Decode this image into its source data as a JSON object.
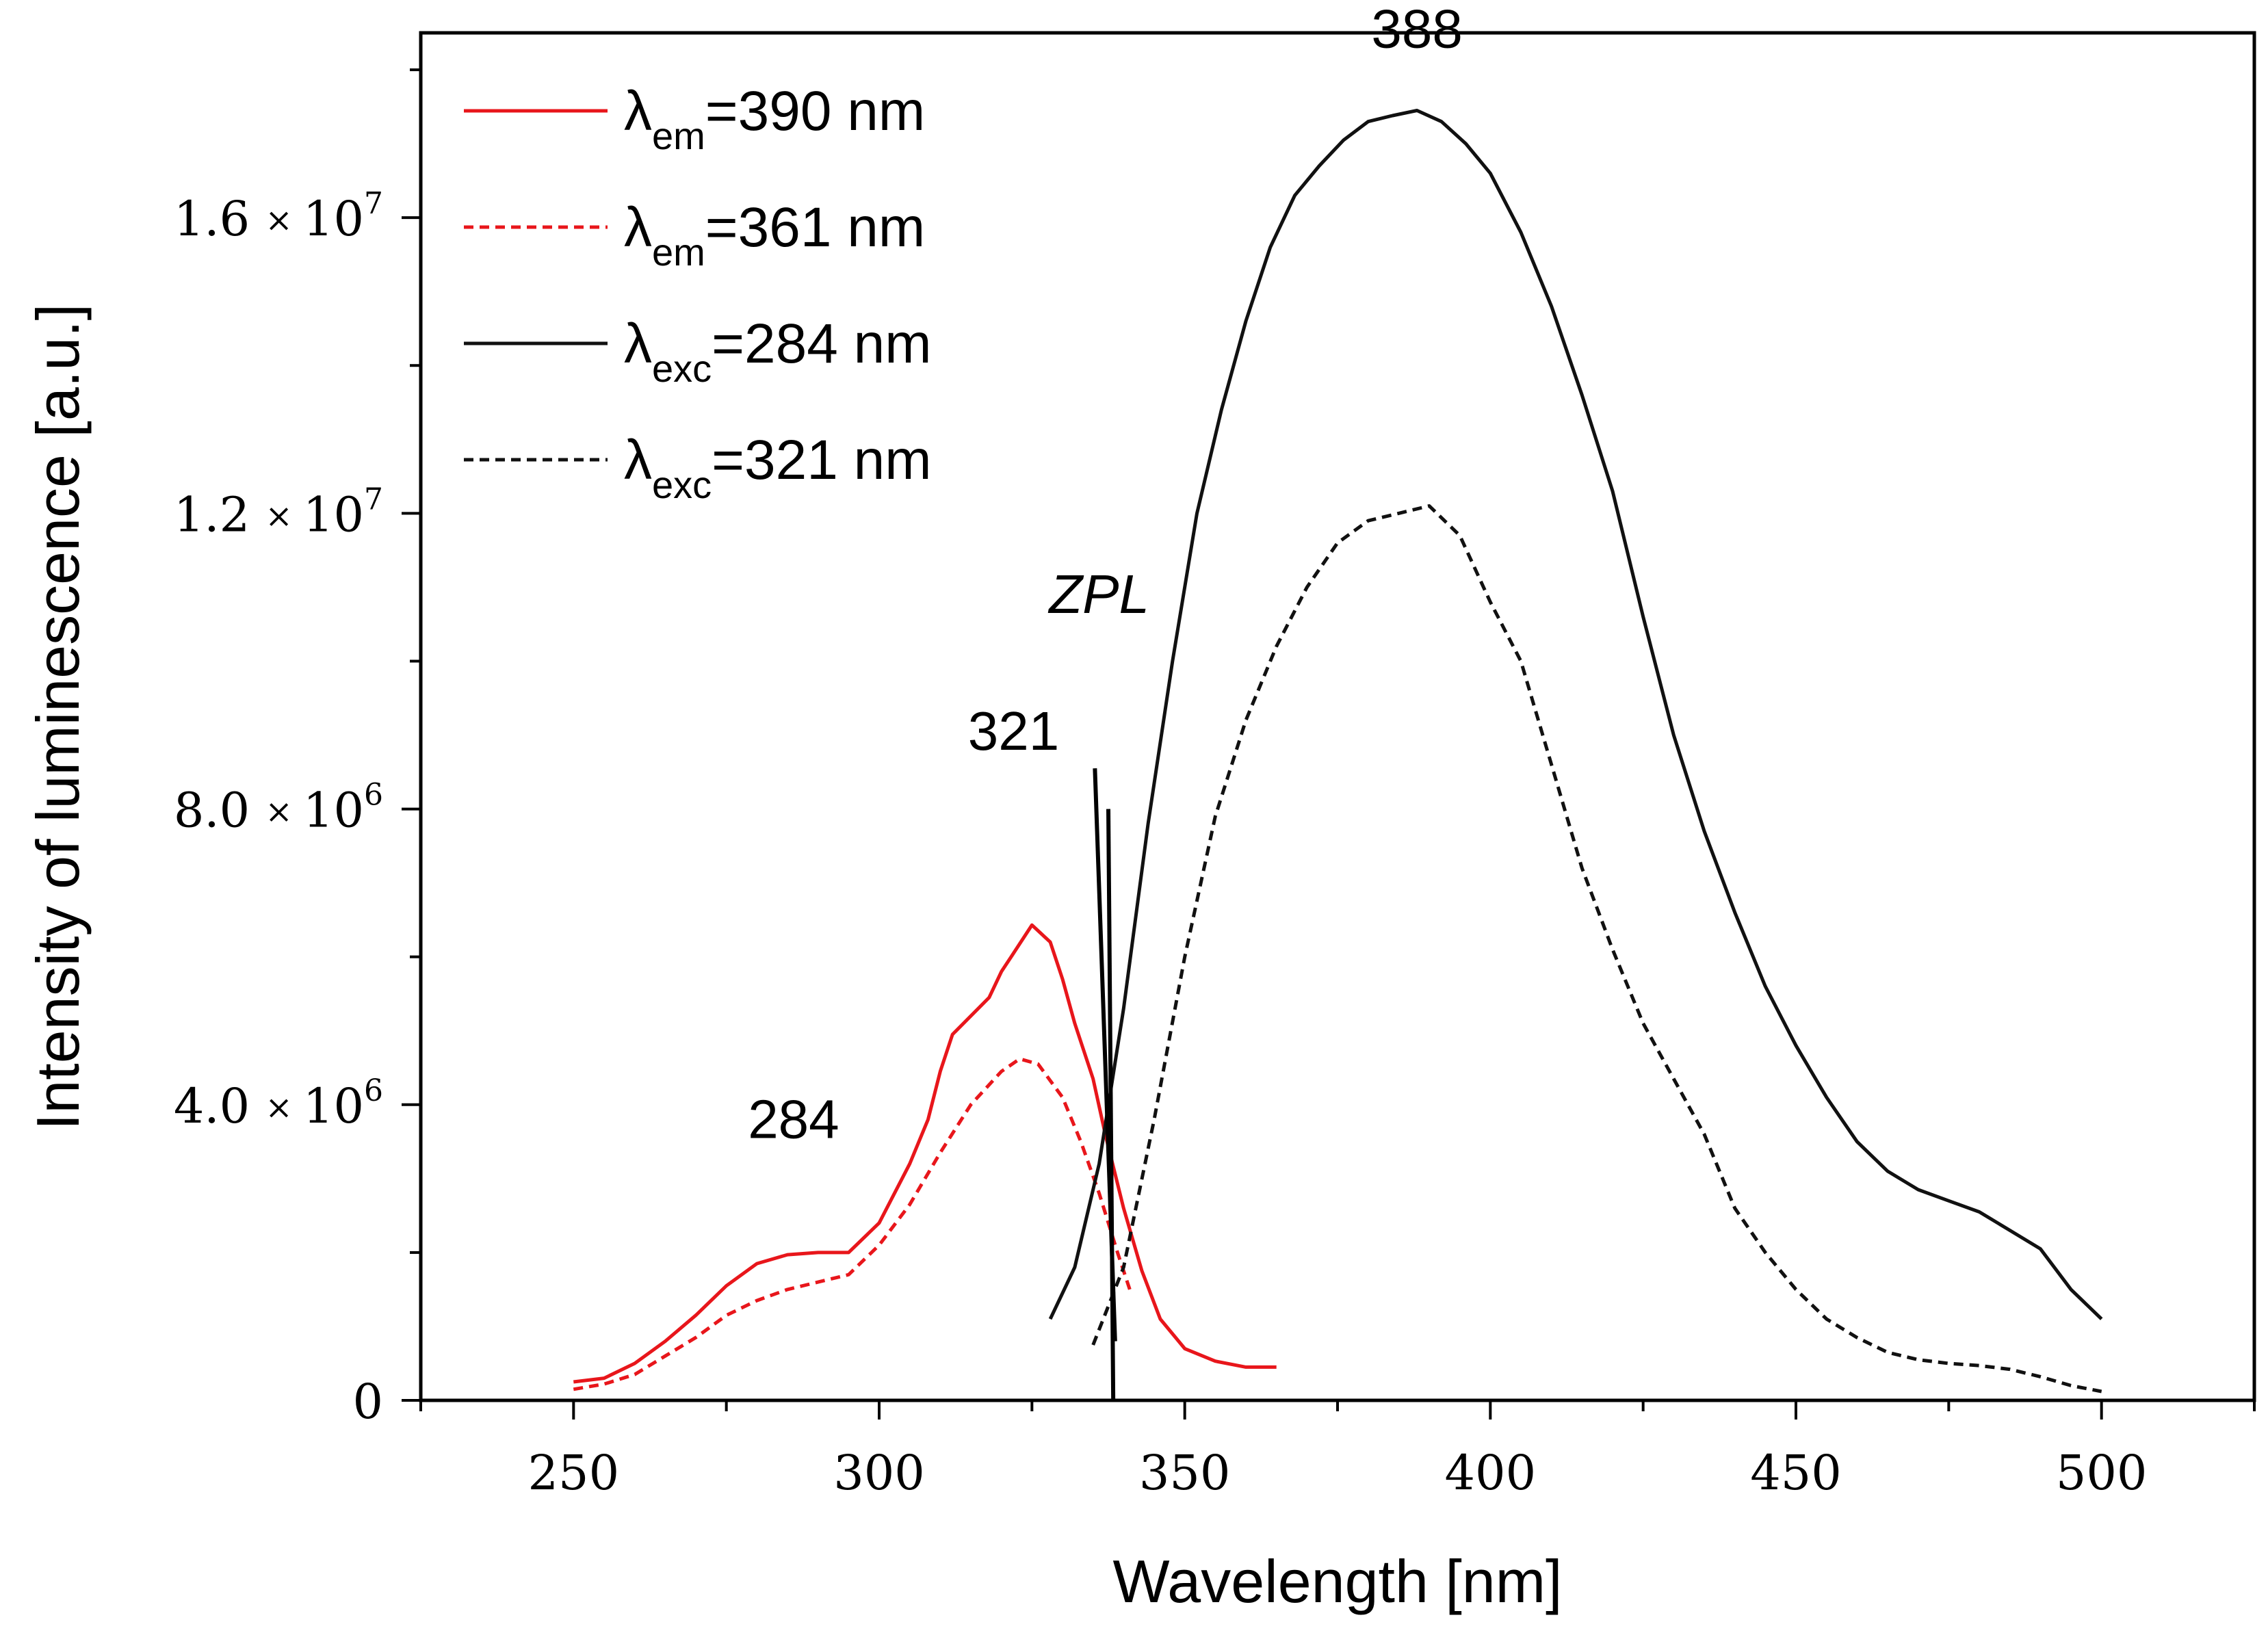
{
  "chart_data": {
    "type": "line",
    "xlabel": "Wavelength [nm]",
    "ylabel": "Intensity of luminescence [a.u.]",
    "xlim": [
      225,
      525
    ],
    "ylim": [
      0,
      18500000
    ],
    "x_ticks": [
      {
        "value": 250,
        "label": "250"
      },
      {
        "value": 300,
        "label": "300"
      },
      {
        "value": 350,
        "label": "350"
      },
      {
        "value": 400,
        "label": "400"
      },
      {
        "value": 450,
        "label": "450"
      },
      {
        "value": 500,
        "label": "500"
      }
    ],
    "x_minor_ticks": [
      225,
      275,
      325,
      375,
      425,
      475,
      525
    ],
    "y_ticks": [
      {
        "value": 0,
        "mantissa": "0",
        "times": "",
        "base": "",
        "exp": ""
      },
      {
        "value": 4000000,
        "mantissa": "4.0",
        "times": "×",
        "base": "10",
        "exp": "6"
      },
      {
        "value": 8000000,
        "mantissa": "8.0",
        "times": "×",
        "base": "10",
        "exp": "6"
      },
      {
        "value": 12000000,
        "mantissa": "1.2",
        "times": "×",
        "base": "10",
        "exp": "7"
      },
      {
        "value": 16000000,
        "mantissa": "1.6",
        "times": "×",
        "base": "10",
        "exp": "7"
      }
    ],
    "y_minor_ticks": [
      2000000,
      6000000,
      10000000,
      14000000,
      18000000
    ],
    "legend_position": "top-left",
    "series": [
      {
        "name": "λem=390 nm",
        "legend": {
          "symbol": "λ",
          "sub": "em",
          "rest": "=390 nm"
        },
        "color": "#e8161b",
        "dash": "solid",
        "x": [
          250,
          255,
          260,
          265,
          270,
          275,
          280,
          285,
          290,
          295,
          300,
          305,
          308,
          310,
          312,
          315,
          318,
          320,
          322,
          325,
          328,
          330,
          332,
          335,
          337,
          340,
          343,
          346,
          350,
          355,
          360,
          365
        ],
        "y": [
          250000,
          300000,
          500000,
          800000,
          1150000,
          1550000,
          1850000,
          1970000,
          2000000,
          2000000,
          2400000,
          3200000,
          3800000,
          4450000,
          4950000,
          5200000,
          5450000,
          5800000,
          6050000,
          6430000,
          6200000,
          5700000,
          5100000,
          4350000,
          3600000,
          2600000,
          1750000,
          1100000,
          700000,
          530000,
          450000,
          450000
        ]
      },
      {
        "name": "λem=361 nm",
        "legend": {
          "symbol": "λ",
          "sub": "em",
          "rest": "=361 nm"
        },
        "color": "#e8161b",
        "dash": "dashed",
        "x": [
          250,
          255,
          260,
          265,
          270,
          275,
          280,
          285,
          290,
          295,
          300,
          305,
          310,
          315,
          320,
          323,
          326,
          330,
          333,
          336,
          339,
          341
        ],
        "y": [
          150000,
          220000,
          350000,
          600000,
          850000,
          1150000,
          1350000,
          1500000,
          1600000,
          1700000,
          2100000,
          2650000,
          3350000,
          4000000,
          4450000,
          4620000,
          4550000,
          4100000,
          3500000,
          2800000,
          2000000,
          1500000
        ]
      },
      {
        "name": "λexc=284 nm",
        "legend": {
          "symbol": "λ",
          "sub": "exc",
          "rest": "=284 nm"
        },
        "color": "#111111",
        "dash": "solid",
        "x": [
          328,
          332,
          336,
          340,
          344,
          348,
          352,
          356,
          360,
          364,
          368,
          372,
          376,
          380,
          384,
          388,
          392,
          396,
          400,
          405,
          410,
          415,
          420,
          425,
          430,
          435,
          440,
          445,
          450,
          455,
          460,
          465,
          470,
          475,
          480,
          485,
          490,
          495,
          500
        ],
        "y": [
          1100000,
          1800000,
          3200000,
          5300000,
          7800000,
          10000000,
          12000000,
          13400000,
          14600000,
          15600000,
          16300000,
          16700000,
          17050000,
          17300000,
          17380000,
          17450000,
          17300000,
          17000000,
          16600000,
          15800000,
          14800000,
          13600000,
          12300000,
          10600000,
          9000000,
          7700000,
          6600000,
          5600000,
          4800000,
          4100000,
          3500000,
          3100000,
          2850000,
          2700000,
          2550000,
          2300000,
          2050000,
          1500000,
          1100000
        ]
      },
      {
        "name": "λexc=321 nm",
        "legend": {
          "symbol": "λ",
          "sub": "exc",
          "rest": "=321 nm"
        },
        "color": "#111111",
        "dash": "dashed",
        "x": [
          335,
          340,
          345,
          350,
          355,
          360,
          365,
          370,
          375,
          380,
          385,
          390,
          395,
          400,
          405,
          410,
          415,
          420,
          425,
          430,
          435,
          440,
          445,
          450,
          455,
          460,
          465,
          470,
          475,
          480,
          485,
          490,
          495,
          500
        ],
        "y": [
          750000,
          1800000,
          3800000,
          6000000,
          7900000,
          9200000,
          10200000,
          11000000,
          11600000,
          11900000,
          12000000,
          12100000,
          11700000,
          10800000,
          10000000,
          8600000,
          7200000,
          6100000,
          5100000,
          4350000,
          3600000,
          2600000,
          2000000,
          1500000,
          1100000,
          850000,
          650000,
          550000,
          500000,
          470000,
          420000,
          320000,
          200000,
          120000
        ]
      }
    ],
    "annotations": [
      {
        "text": "388",
        "x": 388,
        "y": 18300000,
        "style": "normal"
      },
      {
        "text": "321",
        "x": 322,
        "y": 8800000,
        "style": "normal"
      },
      {
        "text": "284",
        "x": 286,
        "y": 3550000,
        "style": "normal"
      },
      {
        "text": "ZPL",
        "x": 336,
        "y": 10650000,
        "style": "italic"
      }
    ],
    "zpl_lines": [
      {
        "x1": 335.3,
        "y1": 8550000,
        "x2": 338.6,
        "y2": 800000
      },
      {
        "x1": 337.5,
        "y1": 8000000,
        "x2": 338.3,
        "y2": 0
      }
    ]
  }
}
